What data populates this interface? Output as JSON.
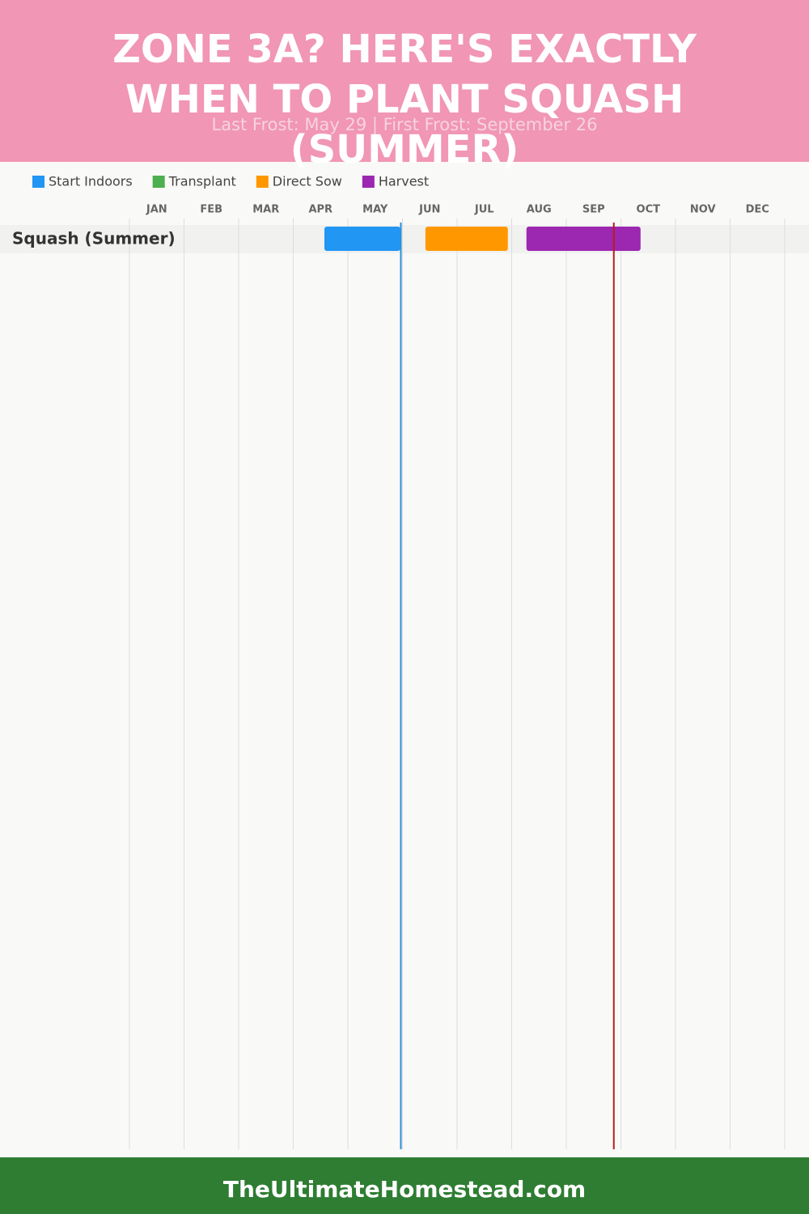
{
  "chart_data": {
    "type": "gantt",
    "title": "ZONE 3A? HERE'S EXACTLY WHEN TO PLANT SQUASH (SUMMER)",
    "subtitle": "Last Frost: May 29 | First Frost: September 26",
    "categories": [
      "JAN",
      "FEB",
      "MAR",
      "APR",
      "MAY",
      "JUN",
      "JUL",
      "AUG",
      "SEP",
      "OCT",
      "NOV",
      "DEC"
    ],
    "xlim": [
      0,
      12
    ],
    "series": [
      {
        "name": "Start Indoors",
        "color": "#2196f3"
      },
      {
        "name": "Transplant",
        "color": "#4caf50"
      },
      {
        "name": "Direct Sow",
        "color": "#ff9800"
      },
      {
        "name": "Harvest",
        "color": "#9c27b0"
      }
    ],
    "rows": [
      {
        "name": "Squash (Summer)",
        "bars": [
          {
            "series": 0,
            "start": 3.57,
            "end": 4.96
          },
          {
            "series": 2,
            "start": 5.42,
            "end": 6.93
          },
          {
            "series": 3,
            "start": 7.27,
            "end": 9.36
          }
        ]
      }
    ],
    "markers": [
      {
        "value": 4.97,
        "color": "#2a8fd6"
      },
      {
        "value": 8.87,
        "color": "#b71c1c"
      }
    ]
  },
  "footer": {
    "text": "TheUltimateHomestead.com"
  }
}
